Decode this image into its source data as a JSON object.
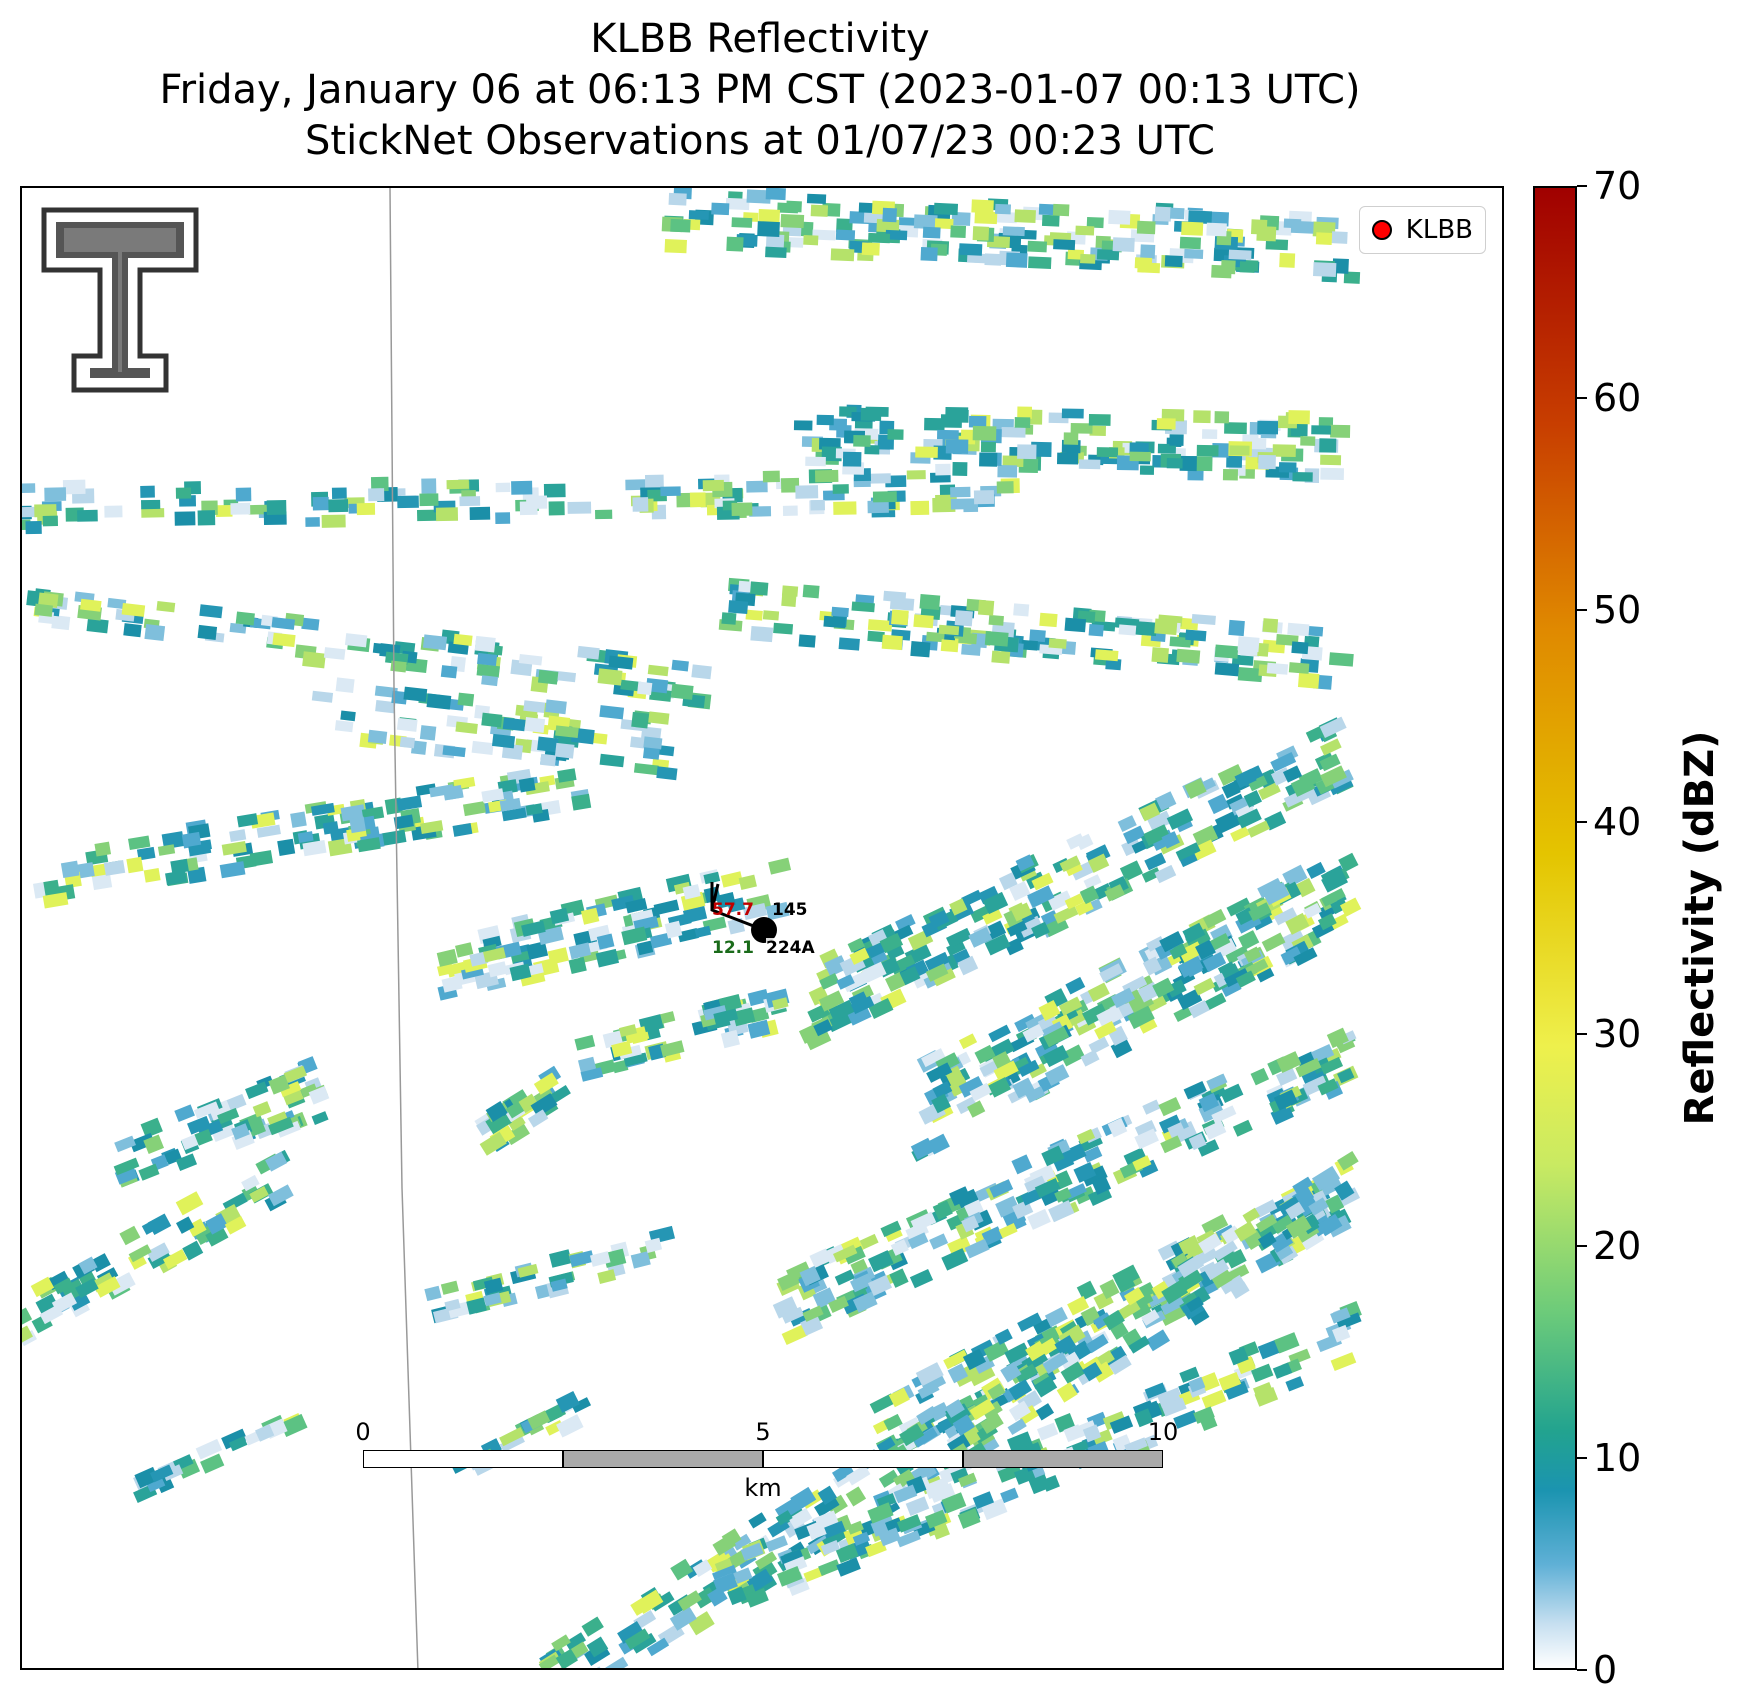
{
  "header": {
    "title": "KLBB Reflectivity",
    "subtitle": "Friday, January 06 at 06:13 PM CST (2023-01-07 00:13 UTC)",
    "observations": "StickNet Observations at 01/07/23 00:23 UTC"
  },
  "legend": {
    "label": "KLBB",
    "marker_color": "#ff0000"
  },
  "station": {
    "temperature": "57.7",
    "pressure": "145",
    "dewpoint": "12.1",
    "id": "224A",
    "temperature_color": "#c00000",
    "dewpoint_color": "#1a6b1a"
  },
  "scalebar": {
    "ticks": [
      "0",
      "5",
      "10"
    ],
    "unit": "km"
  },
  "colorbar": {
    "title": "Reflectivity (dBZ)",
    "ticks": [
      "0",
      "10",
      "20",
      "30",
      "40",
      "50",
      "60",
      "70"
    ],
    "min": 0,
    "max": 70
  },
  "logo": {
    "name": "texas-tech-double-t-logo"
  }
}
